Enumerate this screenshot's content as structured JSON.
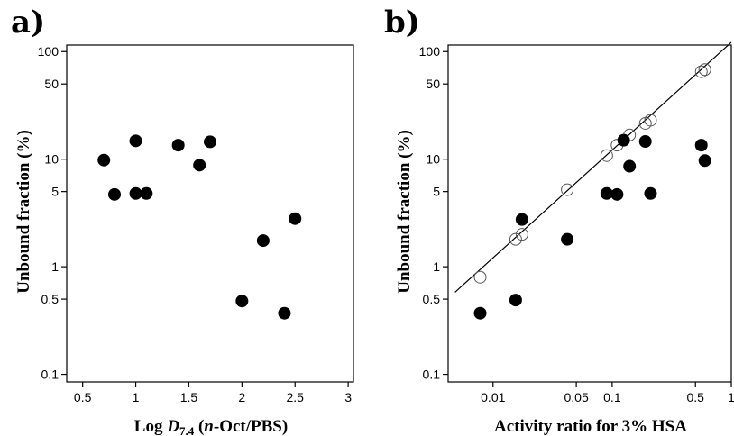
{
  "chart_data": [
    {
      "panel_label": "a)",
      "type": "scatter",
      "xlabel": [
        "Log ",
        "D",
        "7.4",
        " (",
        "n",
        "-Oct/PBS)"
      ],
      "ylabel": "Unbound fraction (%)",
      "x_scale": "linear",
      "y_scale": "log",
      "xlim": [
        0.35,
        3.05
      ],
      "ylim": [
        0.085,
        115
      ],
      "x_ticks": [
        0.5,
        1,
        1.5,
        2,
        2.5,
        3
      ],
      "x_tick_labels": [
        "0.5",
        "1",
        "1.5",
        "2",
        "2.5",
        "3"
      ],
      "y_ticks": [
        0.1,
        0.5,
        1,
        5,
        10,
        50,
        100
      ],
      "y_tick_labels": [
        "0.1",
        "0.5",
        "1",
        "5",
        "10",
        "50",
        "100"
      ],
      "grid": false,
      "series": [
        {
          "marker": "filled-circle",
          "points": [
            {
              "x": 0.7,
              "y": 9.8
            },
            {
              "x": 0.8,
              "y": 4.7
            },
            {
              "x": 1.0,
              "y": 14.8
            },
            {
              "x": 1.0,
              "y": 4.8
            },
            {
              "x": 1.1,
              "y": 4.8
            },
            {
              "x": 1.4,
              "y": 13.5
            },
            {
              "x": 1.6,
              "y": 8.8
            },
            {
              "x": 1.7,
              "y": 14.5
            },
            {
              "x": 2.0,
              "y": 0.48
            },
            {
              "x": 2.2,
              "y": 1.75
            },
            {
              "x": 2.4,
              "y": 0.37
            },
            {
              "x": 2.5,
              "y": 2.8
            }
          ]
        }
      ]
    },
    {
      "panel_label": "b)",
      "type": "scatter",
      "xlabel": "Activity ratio for 3% HSA",
      "ylabel": "Unbound fraction (%)",
      "x_scale": "log",
      "y_scale": "log",
      "xlim": [
        0.0042,
        1.0
      ],
      "ylim": [
        0.085,
        115
      ],
      "x_ticks": [
        0.01,
        0.05,
        0.1,
        0.5,
        1
      ],
      "x_tick_labels": [
        "0.01",
        "0.05",
        "0.1",
        "0.5",
        "1"
      ],
      "y_ticks": [
        0.1,
        0.5,
        1,
        5,
        10,
        50,
        100
      ],
      "y_tick_labels": [
        "0.1",
        "0.5",
        "1",
        "5",
        "10",
        "50",
        "100"
      ],
      "grid": false,
      "fit_line": {
        "x": [
          0.0048,
          1.0
        ],
        "y": [
          0.58,
          122
        ]
      },
      "series": [
        {
          "marker": "open-circle",
          "points": [
            {
              "x": 0.0078,
              "y": 0.8
            },
            {
              "x": 0.0155,
              "y": 1.8
            },
            {
              "x": 0.0175,
              "y": 2.0
            },
            {
              "x": 0.042,
              "y": 5.2
            },
            {
              "x": 0.09,
              "y": 10.8
            },
            {
              "x": 0.11,
              "y": 13.5
            },
            {
              "x": 0.14,
              "y": 16.8
            },
            {
              "x": 0.19,
              "y": 21.5
            },
            {
              "x": 0.21,
              "y": 23.0
            },
            {
              "x": 0.56,
              "y": 65
            },
            {
              "x": 0.6,
              "y": 68
            }
          ]
        },
        {
          "marker": "filled-circle",
          "points": [
            {
              "x": 0.0078,
              "y": 0.37
            },
            {
              "x": 0.0155,
              "y": 0.49
            },
            {
              "x": 0.0175,
              "y": 2.75
            },
            {
              "x": 0.042,
              "y": 1.8
            },
            {
              "x": 0.09,
              "y": 4.8
            },
            {
              "x": 0.11,
              "y": 4.7
            },
            {
              "x": 0.125,
              "y": 15.0
            },
            {
              "x": 0.14,
              "y": 8.6
            },
            {
              "x": 0.19,
              "y": 14.6
            },
            {
              "x": 0.21,
              "y": 4.8
            },
            {
              "x": 0.56,
              "y": 13.5
            },
            {
              "x": 0.6,
              "y": 9.7
            }
          ]
        }
      ]
    }
  ]
}
